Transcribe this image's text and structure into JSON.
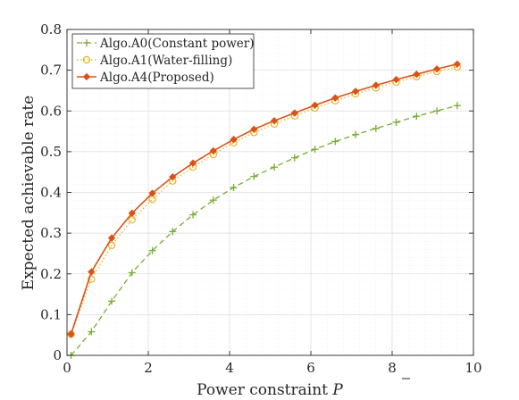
{
  "chart_data": {
    "type": "line",
    "xlabel": "Power constraint",
    "xlabel_symbol": "P",
    "ylabel": "Expected achievable rate",
    "xlim": [
      0,
      10
    ],
    "ylim": [
      0,
      0.8
    ],
    "xticks": [
      "0",
      "2",
      "4",
      "6",
      "8",
      "10"
    ],
    "yticks": [
      "0",
      "0.1",
      "0.2",
      "0.3",
      "0.4",
      "0.5",
      "0.6",
      "0.7",
      "0.8"
    ],
    "grid": "major-and-minor",
    "legend_position": "top-left",
    "x": [
      0.1,
      0.6,
      1.1,
      1.6,
      2.1,
      2.6,
      3.1,
      3.6,
      4.1,
      4.6,
      5.1,
      5.6,
      6.1,
      6.6,
      7.1,
      7.6,
      8.1,
      8.6,
      9.1,
      9.6
    ],
    "series": [
      {
        "name": "Algo.A0(Constant power)",
        "color": "#77ac30",
        "line_style": "dashed",
        "marker": "plus",
        "values": [
          0.0,
          0.058,
          0.133,
          0.203,
          0.257,
          0.304,
          0.345,
          0.381,
          0.412,
          0.439,
          0.462,
          0.485,
          0.506,
          0.525,
          0.542,
          0.557,
          0.572,
          0.587,
          0.6,
          0.613
        ]
      },
      {
        "name": "Algo.A1(Water-filling)",
        "color": "#edb120",
        "line_style": "dotted",
        "marker": "circle-open",
        "values": [
          0.052,
          0.187,
          0.27,
          0.333,
          0.383,
          0.428,
          0.462,
          0.493,
          0.522,
          0.547,
          0.568,
          0.588,
          0.607,
          0.625,
          0.642,
          0.657,
          0.671,
          0.684,
          0.697,
          0.708
        ]
      },
      {
        "name": "Algo.A4(Proposed)",
        "color": "#d95319",
        "line_style": "solid",
        "marker": "diamond-filled",
        "values": [
          0.052,
          0.205,
          0.288,
          0.349,
          0.398,
          0.438,
          0.472,
          0.502,
          0.53,
          0.555,
          0.576,
          0.595,
          0.614,
          0.632,
          0.648,
          0.663,
          0.677,
          0.69,
          0.703,
          0.715
        ]
      }
    ]
  }
}
